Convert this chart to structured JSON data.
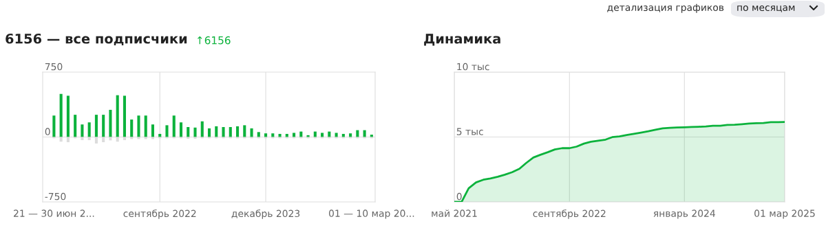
{
  "chart_data": [
    {
      "type": "bar",
      "title": "6156 — все подписчики",
      "subtitle": "↑6156",
      "categories": [
        "21 — 30 июн 2...",
        null,
        null,
        null,
        null,
        null,
        null,
        null,
        null,
        null,
        null,
        null,
        null,
        null,
        null,
        "сентябрь 2022",
        null,
        null,
        null,
        null,
        null,
        null,
        null,
        null,
        null,
        null,
        null,
        null,
        null,
        null,
        "декабрь 2023",
        null,
        null,
        null,
        null,
        null,
        null,
        null,
        null,
        null,
        null,
        null,
        null,
        null,
        null,
        "01 — 10 мар 20..."
      ],
      "series": [
        {
          "color": "#0cb23c",
          "values": [
            248,
            498,
            477,
            257,
            145,
            169,
            257,
            257,
            314,
            483,
            477,
            202,
            248,
            248,
            145,
            36,
            136,
            248,
            169,
            115,
            109,
            181,
            100,
            124,
            115,
            115,
            124,
            136,
            100,
            57,
            42,
            42,
            36,
            36,
            48,
            63,
            21,
            63,
            48,
            63,
            48,
            36,
            42,
            79,
            79,
            27
          ]
        },
        {
          "color": "#dcdcdc",
          "values": [
            -15,
            -54,
            -60,
            -15,
            -36,
            -36,
            -75,
            -60,
            -39,
            -54,
            -36,
            -24,
            -24,
            -24,
            -24,
            -15,
            -15,
            -15,
            -15,
            -20,
            -20,
            -15,
            -15,
            -15,
            -15,
            -15,
            -15,
            -15,
            -15,
            -15,
            -15,
            -15,
            -15,
            -15,
            -15,
            -15,
            -15,
            -15,
            -15,
            -15,
            -15,
            -15,
            -15,
            -15,
            -15,
            -15
          ]
        }
      ],
      "ylim": [
        -750,
        750
      ],
      "yticks": [
        -750,
        0,
        750
      ],
      "grid": true
    },
    {
      "type": "area",
      "title": "Динамика",
      "x": [
        "2021-05",
        "2021-06",
        "2021-07",
        "2021-08",
        "2021-09",
        "2021-10",
        "2021-11",
        "2021-12",
        "2022-01",
        "2022-02",
        "2022-03",
        "2022-04",
        "2022-05",
        "2022-06",
        "2022-07",
        "2022-08",
        "2022-09",
        "2022-10",
        "2022-11",
        "2022-12",
        "2023-01",
        "2023-02",
        "2023-03",
        "2023-04",
        "2023-05",
        "2023-06",
        "2023-07",
        "2023-08",
        "2023-09",
        "2023-10",
        "2023-11",
        "2023-12",
        "2024-01",
        "2024-02",
        "2024-03",
        "2024-04",
        "2024-05",
        "2024-06",
        "2024-07",
        "2024-08",
        "2024-09",
        "2024-10",
        "2024-11",
        "2024-12",
        "2025-01",
        "2025-02",
        "2025-03"
      ],
      "series": [
        {
          "color": "#0cb23c",
          "values": [
            0,
            0,
            1.05,
            1.5,
            1.71,
            1.81,
            1.94,
            2.1,
            2.29,
            2.55,
            2.99,
            3.42,
            3.63,
            3.83,
            4.04,
            4.14,
            4.14,
            4.26,
            4.49,
            4.64,
            4.72,
            4.8,
            4.99,
            5.05,
            5.15,
            5.25,
            5.34,
            5.44,
            5.56,
            5.67,
            5.71,
            5.73,
            5.75,
            5.77,
            5.79,
            5.81,
            5.87,
            5.87,
            5.93,
            5.95,
            5.99,
            6.04,
            6.06,
            6.08,
            6.14,
            6.14,
            6.16
          ]
        }
      ],
      "xlim": [
        "2021-05",
        "2025-03"
      ],
      "xticks": [
        {
          "value": "2021-05",
          "label": "май 2021"
        },
        {
          "value": "2022-09",
          "label": "сентябрь 2022"
        },
        {
          "value": "2024-01",
          "label": "январь 2024"
        },
        {
          "value": "2025-03",
          "label": "01 мар 2025"
        }
      ],
      "ylim": [
        0,
        10
      ],
      "yticks": [
        {
          "value": 0,
          "label": "0"
        },
        {
          "value": 5,
          "label": "5 тыс"
        },
        {
          "value": 10,
          "label": "10 тыс"
        }
      ],
      "grid": true,
      "annotations": [
        "детализация графиков",
        "по месяцам"
      ]
    }
  ]
}
